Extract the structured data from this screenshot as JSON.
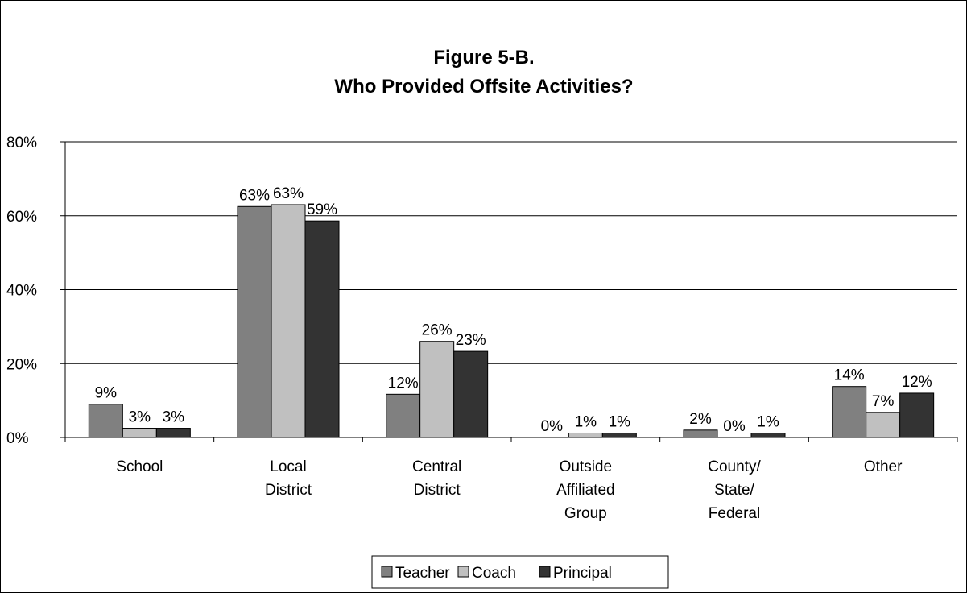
{
  "chart_data": {
    "type": "bar",
    "title_lines": [
      "Figure 5-B.",
      "Who Provided Offsite Activities?"
    ],
    "categories": [
      [
        "School"
      ],
      [
        "Local",
        "District"
      ],
      [
        "Central",
        "District"
      ],
      [
        "Outside",
        "Affiliated",
        "Group"
      ],
      [
        "County/",
        "State/",
        "Federal"
      ],
      [
        "Other"
      ]
    ],
    "series": [
      {
        "name": "Teacher",
        "color": "#808080",
        "values": [
          9,
          62.5,
          11.7,
          0,
          2,
          13.8
        ],
        "labels": [
          "9%",
          "63%",
          "12%",
          "0%",
          "2%",
          "14%"
        ]
      },
      {
        "name": "Coach",
        "color": "#c0c0c0",
        "values": [
          2.5,
          63,
          26,
          1.2,
          0,
          6.8
        ],
        "labels": [
          "3%",
          "63%",
          "26%",
          "1%",
          "0%",
          "7%"
        ]
      },
      {
        "name": "Principal",
        "color": "#333333",
        "values": [
          2.5,
          58.6,
          23.3,
          1.2,
          1.2,
          12
        ],
        "labels": [
          "3%",
          "59%",
          "23%",
          "1%",
          "1%",
          "12%"
        ]
      }
    ],
    "ylim": [
      0,
      80
    ],
    "yticks": [
      0,
      20,
      40,
      60,
      80
    ],
    "ytick_labels": [
      "0%",
      "20%",
      "40%",
      "60%",
      "80%"
    ],
    "grid": true,
    "legend_position": "bottom"
  }
}
